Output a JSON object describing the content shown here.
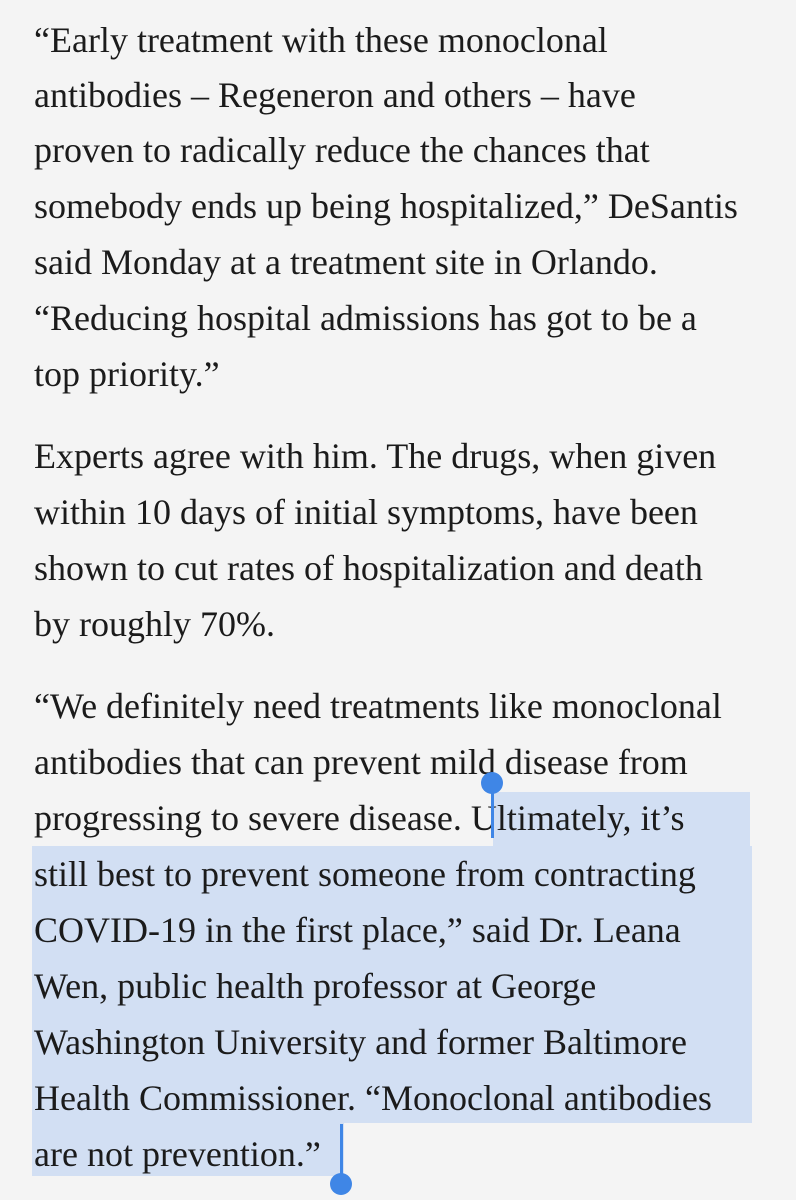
{
  "article": {
    "paragraph1": {
      "lines": [
        "“Early treatment with these monoclonal",
        "antibodies – Regeneron and others – have",
        "proven to radically reduce the chances that",
        "somebody ends up being hospitalized,” DeSantis",
        "said Monday at a treatment site in Orlando.",
        "“Reducing hospital admissions has got to be a",
        "top priority.”"
      ]
    },
    "paragraph2": {
      "lines": [
        "Experts agree with him. The drugs, when given",
        "within 10 days of initial symptoms, have been",
        "shown to cut rates of hospitalization and death",
        "by roughly 70%."
      ]
    },
    "paragraph3": {
      "lines": [
        "“We definitely need treatments like monoclonal",
        "antibodies that can prevent mild disease from",
        "progressing to severe disease. ",
        "Ultimately, it’s",
        "still best to prevent someone from contracting",
        "COVID-19 in the first place,” said Dr. Leana",
        "Wen, public health professor at George",
        "Washington University and former Baltimore",
        "Health Commissioner. “Monoclonal antibodies",
        "are not prevention.”"
      ]
    }
  },
  "selection": {
    "highlight_color": "#d2dff3",
    "handle_color": "#3f86e6"
  }
}
